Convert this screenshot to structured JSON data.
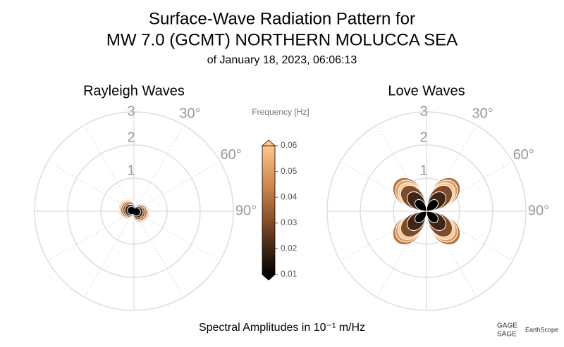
{
  "title_lines": [
    "Surface-Wave Radiation Pattern for",
    "MW 7.0 (GCMT) NORTHERN MOLUCCA SEA"
  ],
  "subtitle": "of January 18, 2023, 06:06:13",
  "footer": "Spectral Amplitudes in 10⁻¹ m/Hz",
  "logos": [
    "GAGE",
    "SAGE",
    "EarthScope"
  ],
  "colorbar": {
    "label": "Frequency [Hz]",
    "clim": [
      0.01,
      0.06
    ],
    "ticks": [
      0.01,
      0.02,
      0.03,
      0.04,
      0.05,
      0.06
    ],
    "colormap": [
      "#000000",
      "#6b3e22",
      "#c9824b",
      "#fdc68e"
    ]
  },
  "chart_data": [
    {
      "type": "polar",
      "title": "Rayleigh Waves",
      "rlim": [
        0,
        3
      ],
      "rticks": [
        1,
        2,
        3
      ],
      "angle_ticks": [
        {
          "value": 30,
          "label": "30°"
        },
        {
          "value": 60,
          "label": "60°"
        },
        {
          "value": 90,
          "label": "90°"
        }
      ],
      "frequencies": [
        0.01,
        0.02,
        0.03,
        0.04,
        0.05,
        0.06
      ],
      "amplitudes": [
        0.2,
        0.28,
        0.34,
        0.4,
        0.44,
        0.48
      ]
    },
    {
      "type": "polar",
      "title": "Love Waves",
      "rlim": [
        0,
        3
      ],
      "rticks": [
        1,
        2,
        3
      ],
      "angle_ticks": [
        {
          "value": 30,
          "label": "30°"
        },
        {
          "value": 60,
          "label": "60°"
        },
        {
          "value": 90,
          "label": "90°"
        }
      ],
      "frequencies": [
        0.01,
        0.02,
        0.03,
        0.04,
        0.05,
        0.06
      ],
      "amplitudes": [
        0.45,
        0.75,
        1.0,
        1.3,
        1.2,
        1.1
      ]
    }
  ]
}
